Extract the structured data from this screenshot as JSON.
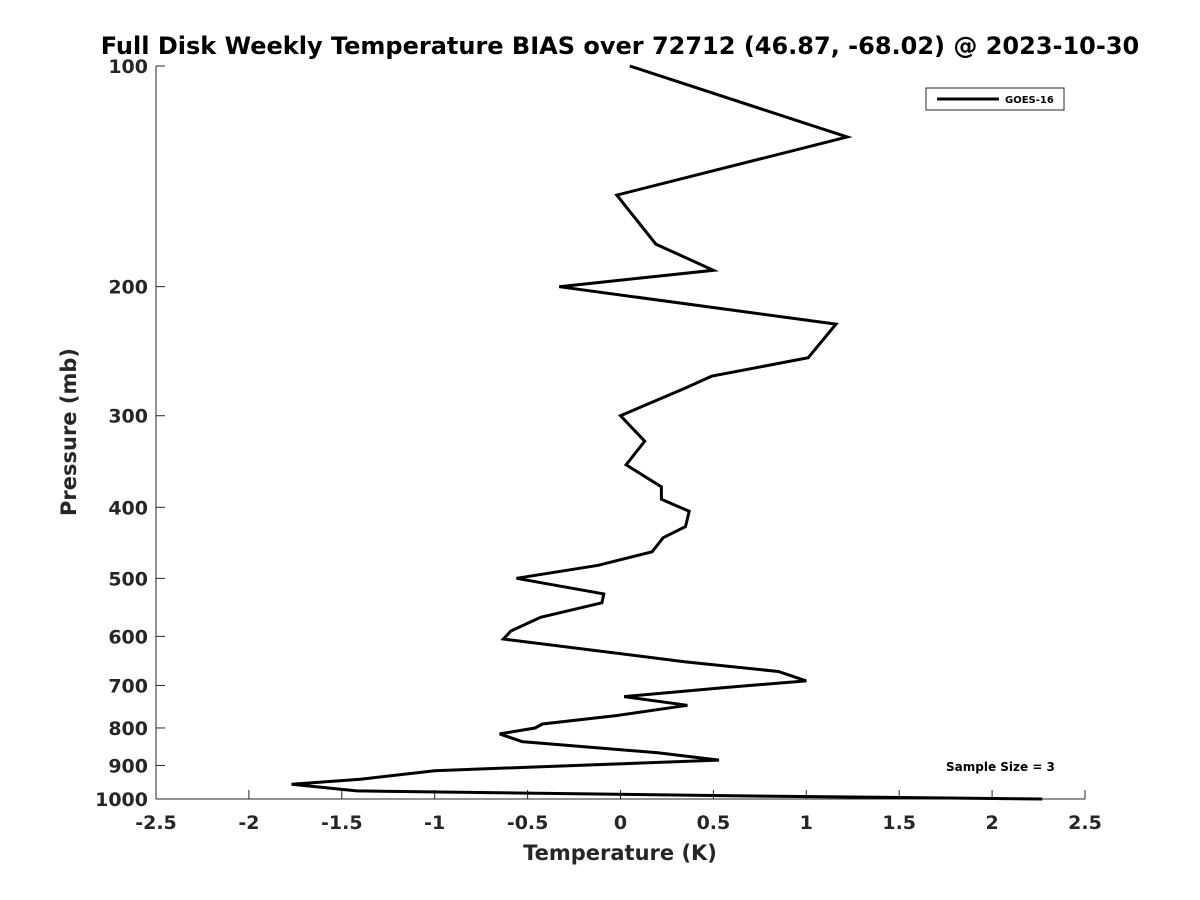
{
  "chart_data": {
    "type": "line",
    "title": "Full Disk Weekly Temperature BIAS over 72712 (46.87, -68.02) @ 2023-10-30",
    "xlabel": "Temperature (K)",
    "ylabel": "Pressure (mb)",
    "xlim": [
      -2.5,
      2.5
    ],
    "ylim": [
      100,
      1000
    ],
    "y_scale": "log",
    "y_reversed": true,
    "grid": false,
    "legend_position": "top-right",
    "x_ticks": [
      -2.5,
      -2,
      -1.5,
      -1,
      -0.5,
      0,
      0.5,
      1,
      1.5,
      2,
      2.5
    ],
    "x_tick_labels": [
      "-2.5",
      "-2",
      "-1.5",
      "-1",
      "-0.5",
      "0",
      "0.5",
      "1",
      "1.5",
      "2",
      "2.5"
    ],
    "y_ticks": [
      100,
      200,
      300,
      400,
      500,
      600,
      700,
      800,
      900,
      1000
    ],
    "y_tick_labels": [
      "100",
      "200",
      "300",
      "400",
      "500",
      "600",
      "700",
      "800",
      "900",
      "1000"
    ],
    "series": [
      {
        "name": "GOES-16",
        "color": "#000000",
        "points": [
          {
            "x": 0.05,
            "y": 100
          },
          {
            "x": 1.22,
            "y": 125
          },
          {
            "x": -0.02,
            "y": 150
          },
          {
            "x": 0.19,
            "y": 175
          },
          {
            "x": 0.5,
            "y": 190
          },
          {
            "x": -0.33,
            "y": 200
          },
          {
            "x": 1.16,
            "y": 225
          },
          {
            "x": 1.01,
            "y": 250
          },
          {
            "x": 0.49,
            "y": 265
          },
          {
            "x": 0.35,
            "y": 275
          },
          {
            "x": 0.0,
            "y": 300
          },
          {
            "x": 0.13,
            "y": 325
          },
          {
            "x": 0.03,
            "y": 350
          },
          {
            "x": 0.22,
            "y": 375
          },
          {
            "x": 0.22,
            "y": 390
          },
          {
            "x": 0.37,
            "y": 405
          },
          {
            "x": 0.35,
            "y": 425
          },
          {
            "x": 0.23,
            "y": 440
          },
          {
            "x": 0.17,
            "y": 460
          },
          {
            "x": -0.12,
            "y": 480
          },
          {
            "x": -0.56,
            "y": 500
          },
          {
            "x": -0.09,
            "y": 525
          },
          {
            "x": -0.1,
            "y": 540
          },
          {
            "x": -0.43,
            "y": 565
          },
          {
            "x": -0.59,
            "y": 590
          },
          {
            "x": -0.63,
            "y": 605
          },
          {
            "x": 0.35,
            "y": 650
          },
          {
            "x": 0.85,
            "y": 670
          },
          {
            "x": 1.0,
            "y": 690
          },
          {
            "x": 0.55,
            "y": 705
          },
          {
            "x": 0.02,
            "y": 725
          },
          {
            "x": 0.36,
            "y": 745
          },
          {
            "x": -0.03,
            "y": 770
          },
          {
            "x": -0.42,
            "y": 790
          },
          {
            "x": -0.46,
            "y": 800
          },
          {
            "x": -0.65,
            "y": 815
          },
          {
            "x": -0.53,
            "y": 835
          },
          {
            "x": 0.2,
            "y": 865
          },
          {
            "x": 0.53,
            "y": 885
          },
          {
            "x": -1.0,
            "y": 915
          },
          {
            "x": -1.4,
            "y": 940
          },
          {
            "x": -1.77,
            "y": 955
          },
          {
            "x": -1.42,
            "y": 975
          },
          {
            "x": 0.6,
            "y": 990
          },
          {
            "x": 2.27,
            "y": 1000
          }
        ]
      }
    ],
    "annotations": [
      {
        "text": "Sample Size = 3"
      }
    ]
  }
}
